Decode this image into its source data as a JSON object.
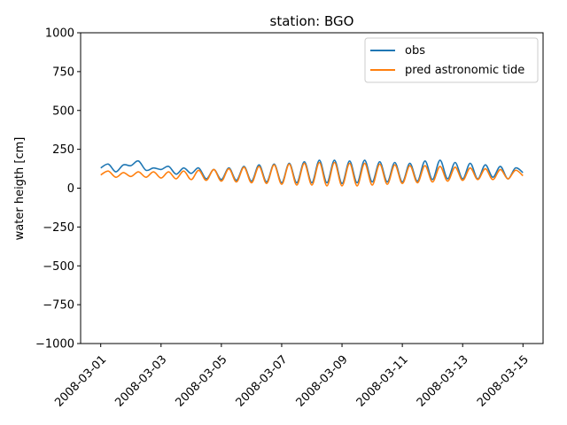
{
  "chart_data": {
    "type": "line",
    "title": "station: BGO",
    "xlabel": "",
    "ylabel": "water heigth [cm]",
    "ylim": [
      -1000,
      1000
    ],
    "yticks": [
      1000,
      750,
      500,
      250,
      0,
      -250,
      -500,
      -750,
      -1000
    ],
    "ytick_labels": [
      "1000",
      "750",
      "500",
      "250",
      "0",
      "−250",
      "−500",
      "−750",
      "−1000"
    ],
    "xlim": [
      "2008-02-29T08:00",
      "2008-03-15T16:00"
    ],
    "xticks": [
      "2008-03-01",
      "2008-03-03",
      "2008-03-05",
      "2008-03-07",
      "2008-03-09",
      "2008-03-11",
      "2008-03-13",
      "2008-03-15"
    ],
    "legend_position": "top-right",
    "grid": false,
    "series": [
      {
        "name": "obs",
        "color": "#1f77b4",
        "x": [
          "2008-03-01T00:00",
          "2008-03-01T06:00",
          "2008-03-01T12:00",
          "2008-03-01T18:00",
          "2008-03-02T00:00",
          "2008-03-02T06:00",
          "2008-03-02T12:00",
          "2008-03-02T18:00",
          "2008-03-03T00:00",
          "2008-03-03T06:00",
          "2008-03-03T12:00",
          "2008-03-03T18:00",
          "2008-03-04T00:00",
          "2008-03-04T06:00",
          "2008-03-04T12:00",
          "2008-03-04T18:00",
          "2008-03-05T00:00",
          "2008-03-05T06:00",
          "2008-03-05T12:00",
          "2008-03-05T18:00",
          "2008-03-06T00:00",
          "2008-03-06T06:00",
          "2008-03-06T12:00",
          "2008-03-06T18:00",
          "2008-03-07T00:00",
          "2008-03-07T06:00",
          "2008-03-07T12:00",
          "2008-03-07T18:00",
          "2008-03-08T00:00",
          "2008-03-08T06:00",
          "2008-03-08T12:00",
          "2008-03-08T18:00",
          "2008-03-09T00:00",
          "2008-03-09T06:00",
          "2008-03-09T12:00",
          "2008-03-09T18:00",
          "2008-03-10T00:00",
          "2008-03-10T06:00",
          "2008-03-10T12:00",
          "2008-03-10T18:00",
          "2008-03-11T00:00",
          "2008-03-11T06:00",
          "2008-03-11T12:00",
          "2008-03-11T18:00",
          "2008-03-12T00:00",
          "2008-03-12T06:00",
          "2008-03-12T12:00",
          "2008-03-12T18:00",
          "2008-03-13T00:00",
          "2008-03-13T06:00",
          "2008-03-13T12:00",
          "2008-03-13T18:00",
          "2008-03-14T00:00",
          "2008-03-14T06:00",
          "2008-03-14T12:00",
          "2008-03-14T18:00",
          "2008-03-15T00:00"
        ],
        "y": [
          130,
          155,
          105,
          150,
          145,
          175,
          115,
          130,
          120,
          140,
          90,
          130,
          95,
          130,
          60,
          120,
          55,
          130,
          50,
          140,
          45,
          150,
          40,
          155,
          35,
          160,
          35,
          170,
          35,
          180,
          35,
          180,
          30,
          175,
          35,
          180,
          40,
          170,
          40,
          165,
          40,
          160,
          45,
          175,
          55,
          180,
          60,
          165,
          60,
          160,
          60,
          150,
          70,
          140,
          60,
          130,
          100
        ]
      },
      {
        "name": "pred astronomic tide",
        "color": "#ff7f0e",
        "x": [
          "2008-03-01T00:00",
          "2008-03-01T06:00",
          "2008-03-01T12:00",
          "2008-03-01T18:00",
          "2008-03-02T00:00",
          "2008-03-02T06:00",
          "2008-03-02T12:00",
          "2008-03-02T18:00",
          "2008-03-03T00:00",
          "2008-03-03T06:00",
          "2008-03-03T12:00",
          "2008-03-03T18:00",
          "2008-03-04T00:00",
          "2008-03-04T06:00",
          "2008-03-04T12:00",
          "2008-03-04T18:00",
          "2008-03-05T00:00",
          "2008-03-05T06:00",
          "2008-03-05T12:00",
          "2008-03-05T18:00",
          "2008-03-06T00:00",
          "2008-03-06T06:00",
          "2008-03-06T12:00",
          "2008-03-06T18:00",
          "2008-03-07T00:00",
          "2008-03-07T06:00",
          "2008-03-07T12:00",
          "2008-03-07T18:00",
          "2008-03-08T00:00",
          "2008-03-08T06:00",
          "2008-03-08T12:00",
          "2008-03-08T18:00",
          "2008-03-09T00:00",
          "2008-03-09T06:00",
          "2008-03-09T12:00",
          "2008-03-09T18:00",
          "2008-03-10T00:00",
          "2008-03-10T06:00",
          "2008-03-10T12:00",
          "2008-03-10T18:00",
          "2008-03-11T00:00",
          "2008-03-11T06:00",
          "2008-03-11T12:00",
          "2008-03-11T18:00",
          "2008-03-12T00:00",
          "2008-03-12T06:00",
          "2008-03-12T12:00",
          "2008-03-12T18:00",
          "2008-03-13T00:00",
          "2008-03-13T06:00",
          "2008-03-13T12:00",
          "2008-03-13T18:00",
          "2008-03-14T00:00",
          "2008-03-14T06:00",
          "2008-03-14T12:00",
          "2008-03-14T18:00",
          "2008-03-15T00:00"
        ],
        "y": [
          85,
          110,
          70,
          100,
          75,
          105,
          70,
          105,
          65,
          105,
          60,
          110,
          55,
          115,
          50,
          120,
          45,
          125,
          40,
          135,
          35,
          140,
          30,
          150,
          25,
          155,
          20,
          160,
          20,
          165,
          15,
          165,
          15,
          160,
          15,
          160,
          20,
          155,
          25,
          150,
          30,
          145,
          35,
          145,
          40,
          140,
          45,
          135,
          50,
          130,
          55,
          125,
          55,
          120,
          60,
          115,
          80
        ]
      }
    ]
  }
}
